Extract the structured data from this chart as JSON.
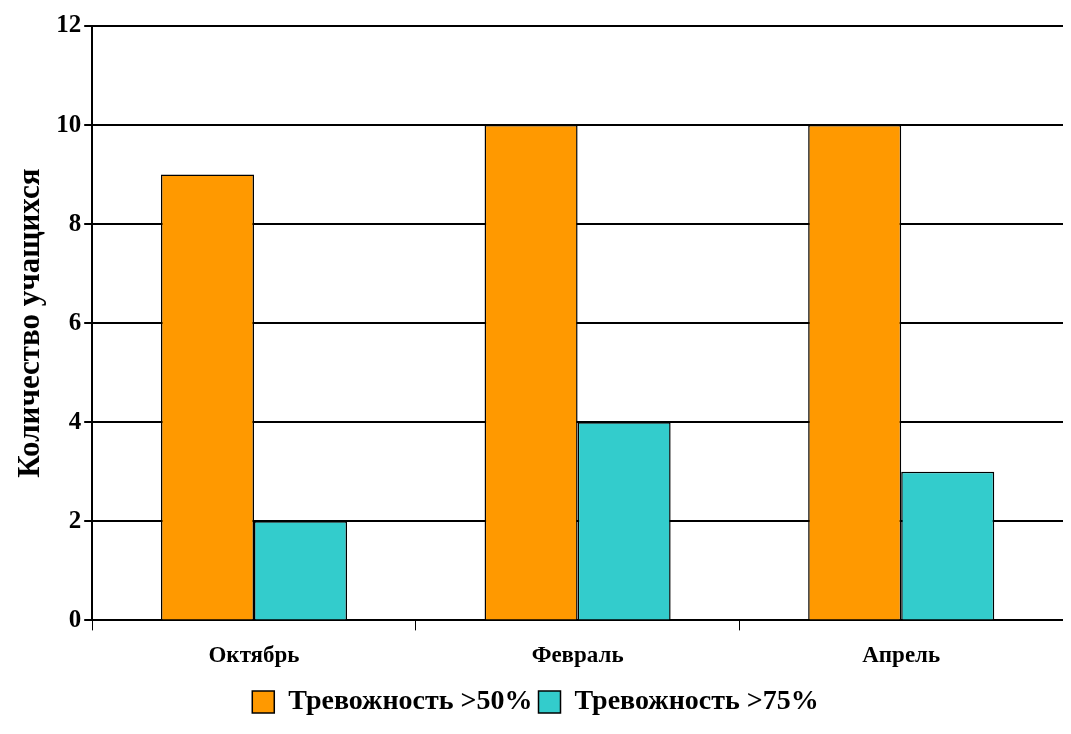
{
  "chart_data": {
    "type": "bar",
    "ylabel": "Количество учащихся",
    "categories": [
      "Октябрь",
      "Февраль",
      "Апрель"
    ],
    "series": [
      {
        "name": "Тревожность >50%",
        "color": "#ff9900",
        "values": [
          9,
          10,
          10
        ]
      },
      {
        "name": "Тревожность >75%",
        "color": "#33cccc",
        "values": [
          2,
          4,
          3
        ]
      }
    ],
    "ylim": [
      0,
      12
    ],
    "yticks": [
      0,
      2,
      4,
      6,
      8,
      10,
      12
    ],
    "grid": "y",
    "legend": "bottom"
  }
}
